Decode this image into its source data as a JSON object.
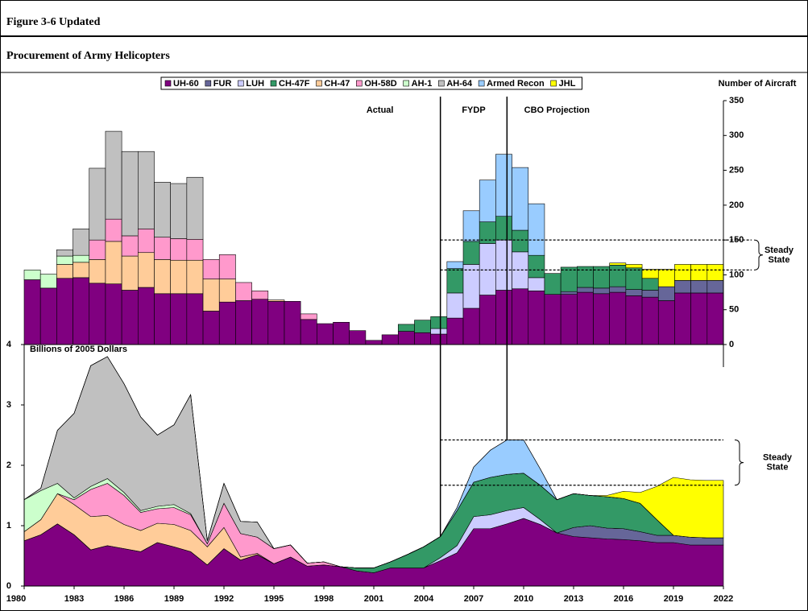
{
  "header": {
    "figure": "Figure 3-6 Updated",
    "title": "Procurement of Army Helicopters"
  },
  "chart_data": [
    {
      "type": "bar",
      "stacked": true,
      "ylabel": "Number of Aircraft",
      "y_axis_side": "right",
      "legend": "top-left",
      "ylim": [
        0,
        350
      ],
      "yticks": [
        0,
        50,
        100,
        150,
        200,
        250,
        300,
        350
      ],
      "x": [
        1980,
        1981,
        1982,
        1983,
        1984,
        1985,
        1986,
        1987,
        1988,
        1989,
        1990,
        1991,
        1992,
        1993,
        1994,
        1995,
        1996,
        1997,
        1998,
        1999,
        2000,
        2001,
        2002,
        2003,
        2004,
        2005,
        2006,
        2007,
        2008,
        2009,
        2010,
        2011,
        2012,
        2013,
        2014,
        2015,
        2016,
        2017,
        2018,
        2019,
        2020,
        2021,
        2022
      ],
      "annotations": {
        "actual": "Actual",
        "fydp": "FYDP",
        "projection": "CBO Projection",
        "steady": "Steady State"
      },
      "period_dividers": [
        2005,
        2009
      ],
      "steady_state_range": [
        107,
        150
      ],
      "series": [
        {
          "name": "UH-60",
          "color": "#800080",
          "values": [
            93,
            81,
            95,
            96,
            88,
            87,
            78,
            82,
            73,
            73,
            73,
            48,
            61,
            63,
            65,
            62,
            62,
            36,
            30,
            32,
            20,
            6,
            14,
            19,
            17,
            15,
            38,
            52,
            71,
            78,
            80,
            77,
            72,
            72,
            75,
            73,
            75,
            70,
            68,
            63,
            74,
            74,
            74
          ]
        },
        {
          "name": "FUR",
          "color": "#666699",
          "values": [
            0,
            0,
            0,
            0,
            0,
            0,
            0,
            0,
            0,
            0,
            0,
            0,
            0,
            0,
            0,
            0,
            0,
            0,
            0,
            0,
            0,
            0,
            0,
            0,
            0,
            0,
            0,
            0,
            0,
            0,
            0,
            0,
            0,
            4,
            7,
            8,
            8,
            9,
            10,
            20,
            18,
            18,
            18
          ]
        },
        {
          "name": "LUH",
          "color": "#ccccff",
          "values": [
            0,
            0,
            0,
            0,
            0,
            0,
            0,
            0,
            0,
            0,
            0,
            0,
            0,
            0,
            0,
            0,
            0,
            0,
            0,
            0,
            0,
            0,
            0,
            0,
            0,
            8,
            36,
            63,
            74,
            72,
            53,
            19,
            0,
            0,
            0,
            0,
            0,
            0,
            0,
            0,
            0,
            0,
            0
          ]
        },
        {
          "name": "CH-47F",
          "color": "#339966",
          "values": [
            0,
            0,
            0,
            0,
            0,
            0,
            0,
            0,
            0,
            0,
            0,
            0,
            0,
            0,
            0,
            0,
            0,
            0,
            0,
            0,
            0,
            0,
            0,
            10,
            18,
            17,
            35,
            33,
            31,
            34,
            31,
            32,
            30,
            35,
            30,
            31,
            31,
            31,
            17,
            0,
            0,
            0,
            0
          ]
        },
        {
          "name": "CH-47",
          "color": "#ffcc99",
          "values": [
            0,
            0,
            20,
            22,
            34,
            61,
            49,
            50,
            49,
            48,
            48,
            46,
            33,
            0,
            0,
            2,
            0,
            0,
            0,
            0,
            0,
            0,
            0,
            0,
            0,
            0,
            0,
            0,
            0,
            0,
            0,
            0,
            0,
            0,
            0,
            0,
            0,
            0,
            0,
            0,
            0,
            0,
            0
          ]
        },
        {
          "name": "OH-58D",
          "color": "#ff99cc",
          "values": [
            0,
            0,
            0,
            0,
            28,
            32,
            29,
            34,
            32,
            31,
            30,
            28,
            35,
            26,
            12,
            0,
            0,
            8,
            0,
            0,
            0,
            0,
            0,
            0,
            0,
            0,
            0,
            0,
            0,
            0,
            0,
            0,
            0,
            0,
            0,
            0,
            0,
            0,
            0,
            0,
            0,
            0,
            0
          ]
        },
        {
          "name": "AH-1",
          "color": "#ccffcc",
          "values": [
            14,
            20,
            12,
            10,
            0,
            0,
            0,
            0,
            0,
            0,
            0,
            0,
            0,
            0,
            0,
            0,
            0,
            0,
            0,
            0,
            0,
            0,
            0,
            0,
            0,
            0,
            0,
            0,
            0,
            0,
            0,
            0,
            0,
            0,
            0,
            0,
            0,
            0,
            0,
            0,
            0,
            0,
            0
          ]
        },
        {
          "name": "AH-64",
          "color": "#c0c0c0",
          "values": [
            0,
            0,
            9,
            38,
            103,
            126,
            121,
            111,
            79,
            79,
            89,
            0,
            0,
            0,
            0,
            0,
            0,
            0,
            0,
            0,
            0,
            0,
            0,
            0,
            0,
            0,
            0,
            0,
            0,
            0,
            0,
            0,
            0,
            0,
            0,
            0,
            0,
            0,
            0,
            0,
            0,
            0,
            0
          ]
        },
        {
          "name": "Armed Recon",
          "color": "#99ccff",
          "values": [
            0,
            0,
            0,
            0,
            0,
            0,
            0,
            0,
            0,
            0,
            0,
            0,
            0,
            0,
            0,
            0,
            0,
            0,
            0,
            0,
            0,
            0,
            0,
            0,
            0,
            0,
            10,
            44,
            60,
            89,
            90,
            74,
            0,
            0,
            0,
            0,
            0,
            0,
            0,
            0,
            0,
            0,
            0
          ]
        },
        {
          "name": "JHL",
          "color": "#ffff00",
          "values": [
            0,
            0,
            0,
            0,
            0,
            0,
            0,
            0,
            0,
            0,
            0,
            0,
            0,
            0,
            0,
            0,
            0,
            0,
            0,
            0,
            0,
            0,
            0,
            0,
            0,
            0,
            0,
            0,
            0,
            0,
            0,
            0,
            0,
            0,
            0,
            0,
            3,
            5,
            13,
            25,
            23,
            23,
            23
          ]
        }
      ]
    },
    {
      "type": "area",
      "stacked": true,
      "ylabel": "Billions of 2005 Dollars",
      "ylim": [
        0,
        4
      ],
      "yticks": [
        0,
        1,
        2,
        3,
        4
      ],
      "xlim": [
        1980,
        2022
      ],
      "xticks": [
        1980,
        1983,
        1986,
        1989,
        1992,
        1995,
        1998,
        2001,
        2004,
        2007,
        2010,
        2013,
        2016,
        2019,
        2022
      ],
      "x": [
        1980,
        1981,
        1982,
        1983,
        1984,
        1985,
        1986,
        1987,
        1988,
        1989,
        1990,
        1991,
        1992,
        1993,
        1994,
        1995,
        1996,
        1997,
        1998,
        1999,
        2000,
        2001,
        2002,
        2003,
        2004,
        2005,
        2006,
        2007,
        2008,
        2009,
        2010,
        2011,
        2012,
        2013,
        2014,
        2015,
        2016,
        2017,
        2018,
        2019,
        2020,
        2021,
        2022
      ],
      "steady_state_label": "Steady State",
      "steady_state_range": [
        1.67,
        2.42
      ],
      "series": [
        {
          "color": "#800080",
          "values": [
            0.75,
            0.85,
            1.03,
            0.85,
            0.6,
            0.67,
            0.62,
            0.57,
            0.72,
            0.65,
            0.57,
            0.35,
            0.62,
            0.43,
            0.52,
            0.37,
            0.48,
            0.33,
            0.35,
            0.32,
            0.25,
            0.22,
            0.3,
            0.3,
            0.3,
            0.42,
            0.55,
            0.95,
            0.95,
            1.03,
            1.12,
            1.02,
            0.88,
            0.82,
            0.8,
            0.78,
            0.77,
            0.75,
            0.72,
            0.72,
            0.68,
            0.68,
            0.68
          ]
        },
        {
          "color": "#666699",
          "values": [
            0,
            0,
            0,
            0,
            0,
            0,
            0,
            0,
            0,
            0,
            0,
            0,
            0,
            0,
            0,
            0,
            0,
            0,
            0,
            0,
            0,
            0,
            0,
            0,
            0,
            0,
            0,
            0,
            0,
            0,
            0,
            0,
            0,
            0.15,
            0.2,
            0.18,
            0.18,
            0.15,
            0.12,
            0.12,
            0.13,
            0.12,
            0.12
          ]
        },
        {
          "color": "#ccccff",
          "values": [
            0,
            0,
            0,
            0,
            0,
            0,
            0,
            0,
            0,
            0,
            0,
            0,
            0,
            0,
            0,
            0,
            0,
            0,
            0,
            0,
            0,
            0,
            0,
            0,
            0,
            0.05,
            0.12,
            0.2,
            0.23,
            0.22,
            0.18,
            0.08,
            0,
            0,
            0,
            0,
            0,
            0,
            0,
            0,
            0,
            0,
            0
          ]
        },
        {
          "color": "#339966",
          "values": [
            0,
            0,
            0,
            0,
            0,
            0,
            0,
            0,
            0,
            0,
            0,
            0,
            0,
            0,
            0,
            0,
            0,
            0,
            0,
            0,
            0.05,
            0.08,
            0.1,
            0.22,
            0.35,
            0.35,
            0.58,
            0.57,
            0.62,
            0.6,
            0.57,
            0.57,
            0.55,
            0.56,
            0.5,
            0.52,
            0.5,
            0.47,
            0.26,
            0,
            0,
            0,
            0
          ]
        },
        {
          "color": "#ffcc99",
          "values": [
            0.15,
            0.25,
            0.5,
            0.5,
            0.55,
            0.5,
            0.4,
            0.35,
            0.32,
            0.37,
            0.35,
            0.3,
            0.35,
            0.05,
            0.02,
            0,
            0,
            0,
            0,
            0,
            0,
            0,
            0,
            0,
            0,
            0,
            0,
            0,
            0,
            0,
            0,
            0,
            0,
            0,
            0,
            0,
            0,
            0,
            0,
            0,
            0,
            0,
            0
          ]
        },
        {
          "color": "#ff99cc",
          "values": [
            0,
            0,
            0,
            0.08,
            0.45,
            0.53,
            0.48,
            0.3,
            0.24,
            0.28,
            0.26,
            0.05,
            0.4,
            0.39,
            0.27,
            0.25,
            0.2,
            0.05,
            0.05,
            0,
            0,
            0,
            0,
            0,
            0,
            0,
            0,
            0,
            0,
            0,
            0,
            0,
            0,
            0,
            0,
            0,
            0,
            0,
            0,
            0,
            0,
            0,
            0
          ]
        },
        {
          "color": "#ccffcc",
          "values": [
            0.53,
            0.48,
            0.17,
            0.03,
            0.05,
            0.08,
            0.05,
            0.03,
            0.04,
            0.05,
            0.02,
            0,
            0,
            0,
            0,
            0,
            0,
            0,
            0,
            0,
            0,
            0,
            0,
            0,
            0,
            0,
            0,
            0,
            0,
            0,
            0,
            0,
            0,
            0,
            0,
            0,
            0,
            0,
            0,
            0,
            0,
            0,
            0
          ]
        },
        {
          "color": "#c0c0c0",
          "values": [
            0,
            0.04,
            0.88,
            1.4,
            2.0,
            2.02,
            1.8,
            1.55,
            1.18,
            1.32,
            1.97,
            0.05,
            0.33,
            0.2,
            0.25,
            0,
            0,
            0,
            0,
            0,
            0,
            0,
            0,
            0,
            0,
            0,
            0,
            0,
            0,
            0,
            0,
            0,
            0,
            0,
            0,
            0,
            0,
            0,
            0,
            0,
            0,
            0,
            0
          ]
        },
        {
          "color": "#99ccff",
          "values": [
            0,
            0,
            0,
            0,
            0,
            0,
            0,
            0,
            0,
            0,
            0,
            0,
            0,
            0,
            0,
            0,
            0,
            0,
            0,
            0,
            0,
            0,
            0,
            0,
            0,
            0,
            0.05,
            0.25,
            0.45,
            0.57,
            0.55,
            0.27,
            0,
            0,
            0,
            0,
            0,
            0,
            0,
            0,
            0,
            0,
            0
          ]
        },
        {
          "color": "#ffff00",
          "values": [
            0,
            0,
            0,
            0,
            0,
            0,
            0,
            0,
            0,
            0,
            0,
            0,
            0,
            0,
            0,
            0,
            0,
            0,
            0,
            0,
            0,
            0,
            0,
            0,
            0,
            0,
            0,
            0,
            0,
            0,
            0,
            0,
            0,
            0,
            0,
            0.02,
            0.12,
            0.18,
            0.55,
            0.96,
            0.95,
            0.95,
            0.95
          ]
        }
      ]
    }
  ]
}
